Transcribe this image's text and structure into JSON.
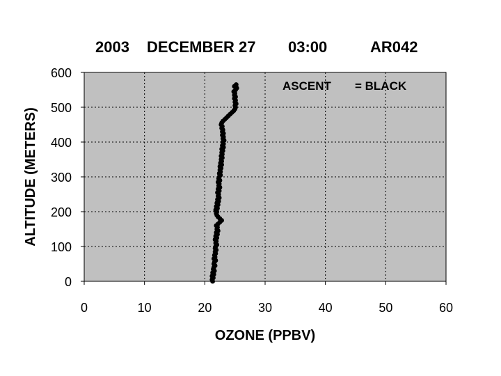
{
  "colors": {
    "plot_background": "#c0c0c0",
    "grid": "#000000",
    "series": "#000000"
  },
  "chart_data": {
    "type": "scatter",
    "title": {
      "year": "2003",
      "date": "DECEMBER 27",
      "time": "03:00",
      "station": "AR042"
    },
    "xlabel": "OZONE (PPBV)",
    "ylabel": "ALTITUDE (METERS)",
    "xlim": [
      0,
      60
    ],
    "ylim": [
      0,
      600
    ],
    "x_ticks": [
      "0",
      "10",
      "20",
      "30",
      "40",
      "50",
      "60"
    ],
    "y_ticks": [
      "0",
      "100",
      "200",
      "300",
      "400",
      "500",
      "600"
    ],
    "grid": "dotted",
    "legend_placement": "top-right",
    "legend": {
      "label": "ASCENT",
      "value": "= BLACK"
    },
    "series": [
      {
        "name": "ASCENT",
        "color": "black",
        "points": [
          [
            21.3,
            0
          ],
          [
            21.2,
            5
          ],
          [
            21.4,
            10
          ],
          [
            21.2,
            15
          ],
          [
            21.5,
            20
          ],
          [
            21.3,
            25
          ],
          [
            21.6,
            30
          ],
          [
            21.4,
            35
          ],
          [
            21.5,
            40
          ],
          [
            21.7,
            45
          ],
          [
            21.5,
            50
          ],
          [
            21.6,
            55
          ],
          [
            21.8,
            60
          ],
          [
            21.5,
            65
          ],
          [
            21.7,
            70
          ],
          [
            21.6,
            75
          ],
          [
            21.8,
            80
          ],
          [
            21.7,
            85
          ],
          [
            21.9,
            90
          ],
          [
            21.7,
            95
          ],
          [
            21.8,
            100
          ],
          [
            22.0,
            105
          ],
          [
            21.8,
            110
          ],
          [
            21.9,
            115
          ],
          [
            21.7,
            120
          ],
          [
            22.0,
            125
          ],
          [
            21.8,
            130
          ],
          [
            22.1,
            135
          ],
          [
            21.9,
            140
          ],
          [
            22.2,
            145
          ],
          [
            22.0,
            150
          ],
          [
            22.1,
            155
          ],
          [
            21.9,
            160
          ],
          [
            22.2,
            165
          ],
          [
            22.5,
            170
          ],
          [
            22.8,
            175
          ],
          [
            22.5,
            180
          ],
          [
            22.2,
            185
          ],
          [
            22.0,
            190
          ],
          [
            21.9,
            195
          ],
          [
            22.0,
            200
          ],
          [
            21.8,
            205
          ],
          [
            22.1,
            210
          ],
          [
            21.9,
            215
          ],
          [
            22.2,
            220
          ],
          [
            22.0,
            225
          ],
          [
            22.3,
            230
          ],
          [
            22.1,
            235
          ],
          [
            22.4,
            240
          ],
          [
            22.2,
            245
          ],
          [
            22.3,
            250
          ],
          [
            22.1,
            255
          ],
          [
            22.4,
            260
          ],
          [
            22.2,
            265
          ],
          [
            22.5,
            270
          ],
          [
            22.3,
            275
          ],
          [
            22.4,
            280
          ],
          [
            22.2,
            285
          ],
          [
            22.5,
            290
          ],
          [
            22.3,
            295
          ],
          [
            22.4,
            300
          ],
          [
            22.6,
            305
          ],
          [
            22.4,
            310
          ],
          [
            22.6,
            315
          ],
          [
            22.5,
            320
          ],
          [
            22.7,
            325
          ],
          [
            22.5,
            330
          ],
          [
            22.8,
            335
          ],
          [
            22.6,
            340
          ],
          [
            22.8,
            345
          ],
          [
            22.7,
            350
          ],
          [
            22.9,
            355
          ],
          [
            22.7,
            360
          ],
          [
            22.9,
            365
          ],
          [
            22.8,
            370
          ],
          [
            23.0,
            375
          ],
          [
            22.8,
            380
          ],
          [
            23.1,
            385
          ],
          [
            22.9,
            390
          ],
          [
            23.1,
            395
          ],
          [
            23.0,
            400
          ],
          [
            23.2,
            405
          ],
          [
            23.0,
            410
          ],
          [
            23.1,
            415
          ],
          [
            22.9,
            420
          ],
          [
            23.1,
            425
          ],
          [
            22.9,
            430
          ],
          [
            23.0,
            435
          ],
          [
            22.8,
            440
          ],
          [
            22.9,
            445
          ],
          [
            22.7,
            450
          ],
          [
            22.8,
            455
          ],
          [
            23.0,
            460
          ],
          [
            23.3,
            465
          ],
          [
            23.6,
            470
          ],
          [
            23.9,
            475
          ],
          [
            24.2,
            480
          ],
          [
            24.5,
            485
          ],
          [
            24.8,
            490
          ],
          [
            25.0,
            495
          ],
          [
            25.1,
            500
          ],
          [
            25.0,
            505
          ],
          [
            25.2,
            510
          ],
          [
            25.0,
            515
          ],
          [
            25.1,
            520
          ],
          [
            24.9,
            525
          ],
          [
            25.1,
            530
          ],
          [
            24.9,
            535
          ],
          [
            25.0,
            540
          ],
          [
            24.8,
            545
          ],
          [
            25.1,
            550
          ],
          [
            25.3,
            555
          ],
          [
            24.9,
            560
          ],
          [
            25.2,
            565
          ]
        ]
      }
    ]
  }
}
